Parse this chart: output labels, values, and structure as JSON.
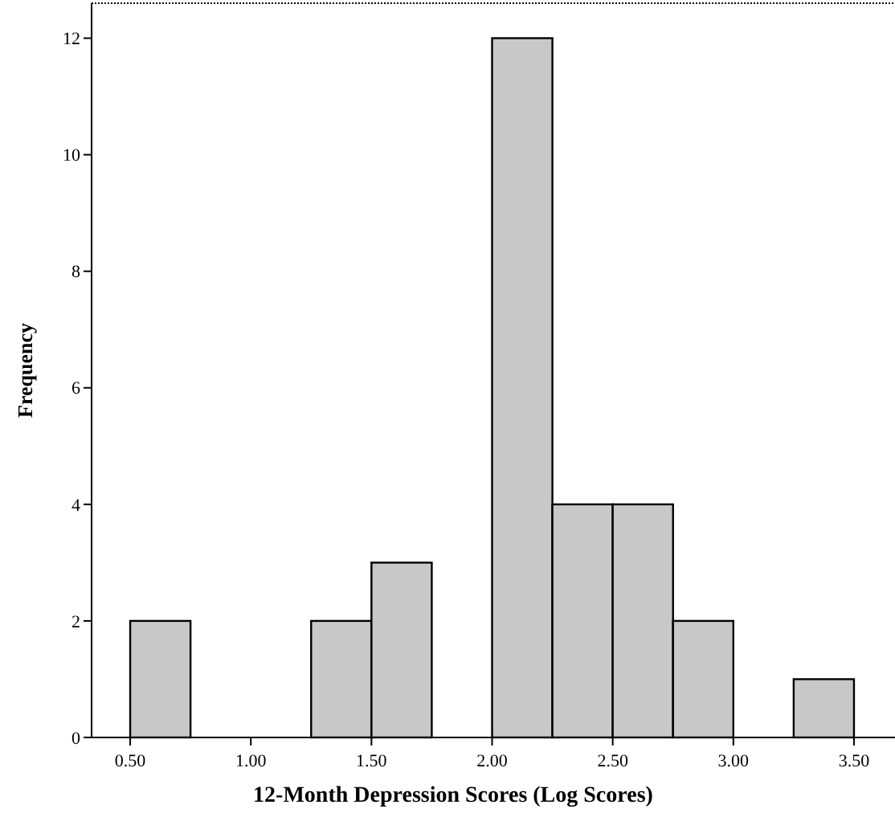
{
  "chart_data": {
    "type": "histogram",
    "xlabel": "12-Month Depression Scores (Log Scores)",
    "ylabel": "Frequency",
    "bins": [
      0.5,
      0.75,
      1.0,
      1.25,
      1.5,
      1.75,
      2.0,
      2.25,
      2.5,
      2.75,
      3.0,
      3.25,
      3.5
    ],
    "values": [
      2,
      0,
      0,
      2,
      3,
      0,
      12,
      4,
      4,
      2,
      0,
      1
    ],
    "color": "#c8c8c8",
    "xlim": [
      0.34,
      3.67
    ],
    "xticks": [
      {
        "value": 0.5,
        "label": "0.50"
      },
      {
        "value": 1,
        "label": "1.00"
      },
      {
        "value": 1.5,
        "label": "1.50"
      },
      {
        "value": 2,
        "label": "2.00"
      },
      {
        "value": 2.5,
        "label": "2.50"
      },
      {
        "value": 3,
        "label": "3.00"
      },
      {
        "value": 3.5,
        "label": "3.50"
      }
    ],
    "ylim": [
      0,
      12.6
    ],
    "yticks": [
      0,
      2,
      4,
      6,
      8,
      10,
      12
    ],
    "grid": false
  }
}
